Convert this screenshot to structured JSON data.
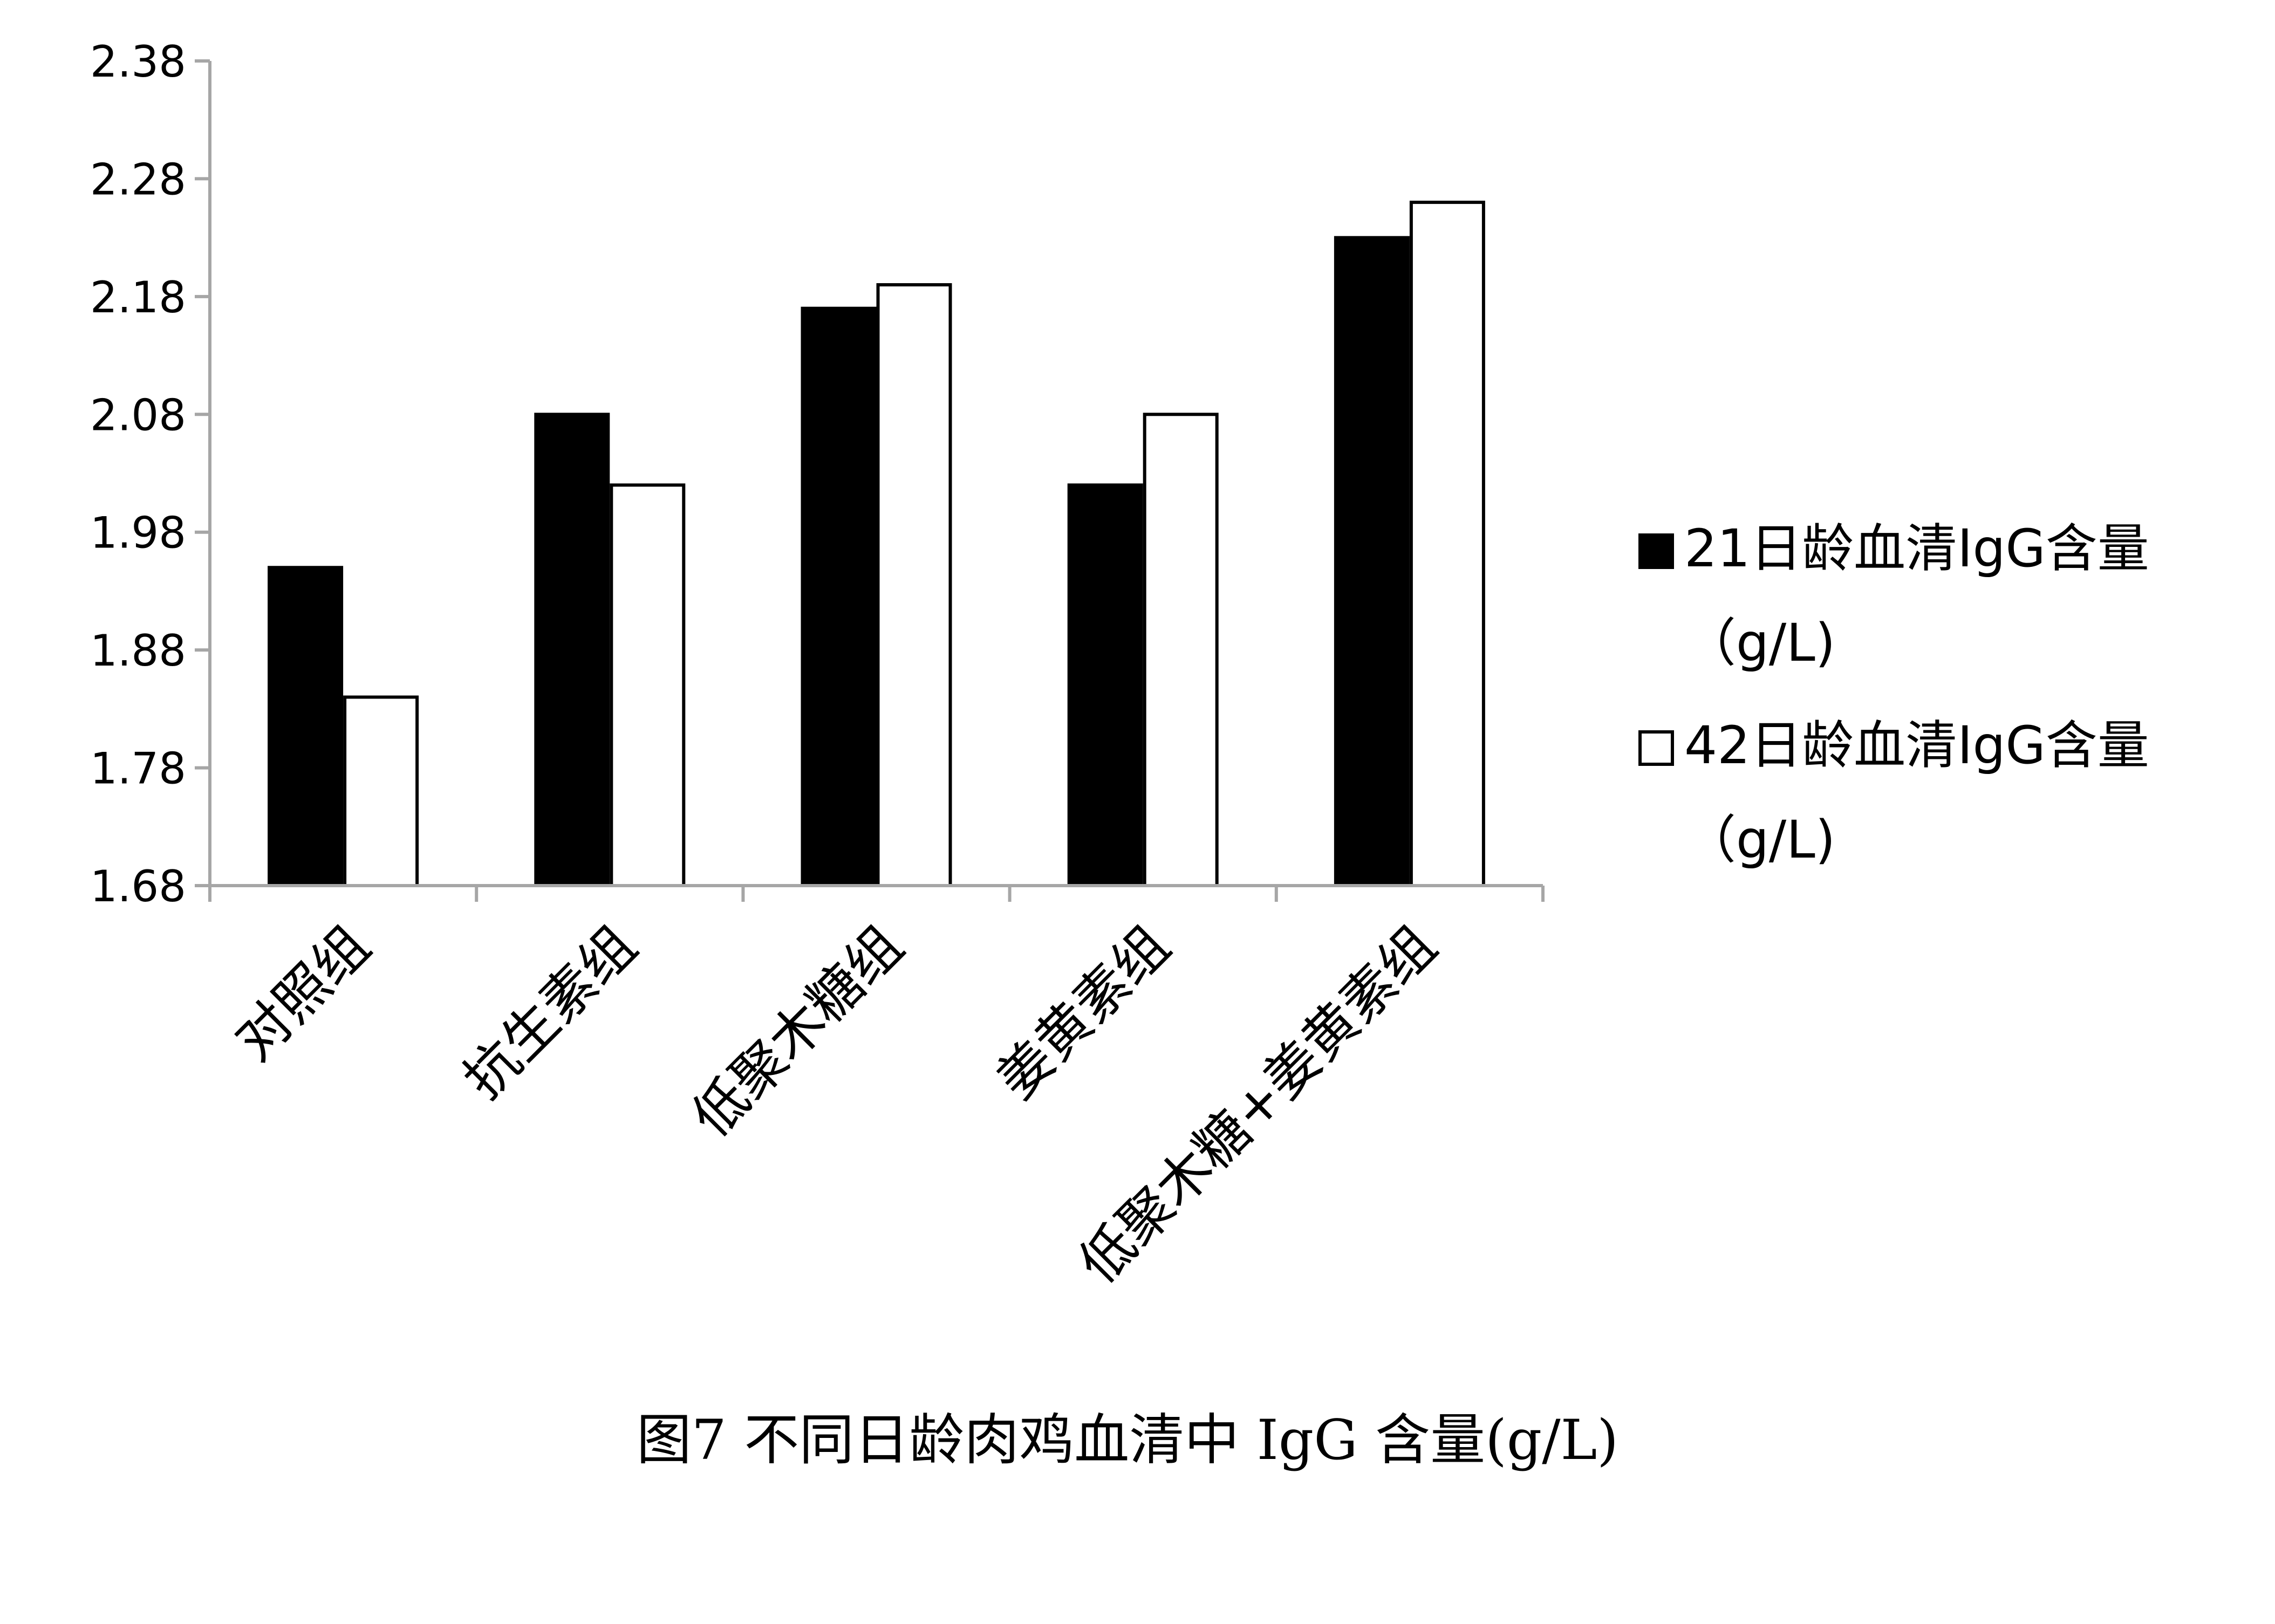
{
  "chart_data": {
    "type": "bar",
    "categories": [
      "对照组",
      "抗生素组",
      "低聚木糖组",
      "姜黄素组",
      "低聚木糖+姜黄素组"
    ],
    "series": [
      {
        "name_line1": "21日龄血清IgG含量",
        "name_line2": "（g/L)",
        "values": [
          1.95,
          2.08,
          2.17,
          2.02,
          2.23
        ],
        "fill": "#000000"
      },
      {
        "name_line1": "42日龄血清IgG含量",
        "name_line2": "（g/L)",
        "values": [
          1.84,
          2.02,
          2.19,
          2.08,
          2.26
        ],
        "fill": "#ffffff"
      }
    ],
    "yticks": [
      "1.68",
      "1.78",
      "1.88",
      "1.98",
      "2.08",
      "2.18",
      "2.28",
      "2.38"
    ],
    "ylim": [
      1.68,
      2.38
    ],
    "grid": false,
    "legend_position": "right",
    "caption": "图7 不同日龄肉鸡血清中 IgG 含量(g/L)",
    "axis_color": "#a6a6a6"
  }
}
